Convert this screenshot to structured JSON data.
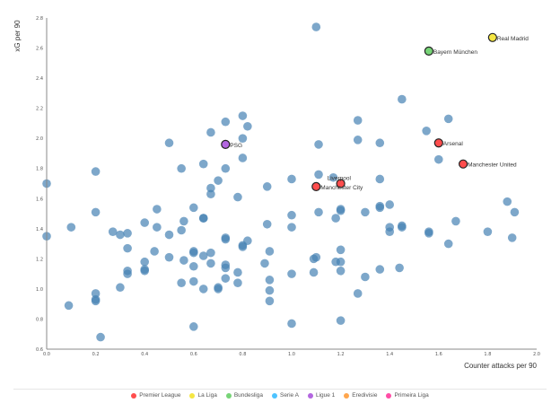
{
  "chart_data": {
    "type": "scatter",
    "xlabel": "Counter attacks per 90",
    "ylabel": "xG per 90",
    "xlim": [
      0,
      2.0
    ],
    "ylim": [
      0.6,
      2.8
    ],
    "xticks": [
      "0.0",
      "0.2",
      "0.4",
      "0.6",
      "0.8",
      "1.0",
      "1.2",
      "1.4",
      "1.6",
      "1.8",
      "2.0"
    ],
    "yticks": [
      "0.6",
      "0.8",
      "1.0",
      "1.2",
      "1.4",
      "1.6",
      "1.8",
      "2.0",
      "2.2",
      "2.4",
      "2.6",
      "2.8"
    ],
    "grid": false,
    "legend_position": "bottom",
    "legend": [
      {
        "label": "Premier League",
        "color": "#ff4d4d"
      },
      {
        "label": "La Liga",
        "color": "#f5e642"
      },
      {
        "label": "Bundesliga",
        "color": "#77d477"
      },
      {
        "label": "Serie A",
        "color": "#4dc3ff"
      },
      {
        "label": "Ligue 1",
        "color": "#b366e0"
      },
      {
        "label": "Eredivisie",
        "color": "#ffa64d"
      },
      {
        "label": "Primeira Liga",
        "color": "#ff4da6"
      }
    ],
    "other_color": "#4682b4",
    "highlighted": [
      {
        "label": "Real Madrid",
        "x": 1.82,
        "y": 2.67,
        "color": "#f5e642"
      },
      {
        "label": "Bayern München",
        "x": 1.56,
        "y": 2.58,
        "color": "#77d477"
      },
      {
        "label": "Arsenal",
        "x": 1.6,
        "y": 1.97,
        "color": "#ff4d4d"
      },
      {
        "label": "Manchester United",
        "x": 1.7,
        "y": 1.83,
        "color": "#ff4d4d"
      },
      {
        "label": "Liverpool",
        "x": 1.2,
        "y": 1.7,
        "color": "#ff4d4d"
      },
      {
        "label": "Manchester City",
        "x": 1.1,
        "y": 1.68,
        "color": "#ff4d4d"
      },
      {
        "label": "PSG",
        "x": 0.73,
        "y": 1.96,
        "color": "#b366e0"
      }
    ],
    "others": [
      [
        0.0,
        1.7
      ],
      [
        0.2,
        1.78
      ],
      [
        0.5,
        1.97
      ],
      [
        0.55,
        1.8
      ],
      [
        0.64,
        1.83
      ],
      [
        0.67,
        2.04
      ],
      [
        0.73,
        2.11
      ],
      [
        0.8,
        2.15
      ],
      [
        0.82,
        2.08
      ],
      [
        0.8,
        2.0
      ],
      [
        0.8,
        1.87
      ],
      [
        0.73,
        1.8
      ],
      [
        0.7,
        1.72
      ],
      [
        0.67,
        1.67
      ],
      [
        0.67,
        1.63
      ],
      [
        0.78,
        1.61
      ],
      [
        0.9,
        1.68
      ],
      [
        1.1,
        2.74
      ],
      [
        1.45,
        2.26
      ],
      [
        1.27,
        2.12
      ],
      [
        1.64,
        2.13
      ],
      [
        1.27,
        1.99
      ],
      [
        1.55,
        2.05
      ],
      [
        1.11,
        1.96
      ],
      [
        1.36,
        1.97
      ],
      [
        1.6,
        1.86
      ],
      [
        1.11,
        1.76
      ],
      [
        1.0,
        1.73
      ],
      [
        1.36,
        1.73
      ],
      [
        1.17,
        1.74
      ],
      [
        0.0,
        1.35
      ],
      [
        0.1,
        1.41
      ],
      [
        0.2,
        1.51
      ],
      [
        0.27,
        1.38
      ],
      [
        0.3,
        1.36
      ],
      [
        0.33,
        1.37
      ],
      [
        0.33,
        1.27
      ],
      [
        0.4,
        1.44
      ],
      [
        0.45,
        1.53
      ],
      [
        0.45,
        1.41
      ],
      [
        0.5,
        1.36
      ],
      [
        0.55,
        1.39
      ],
      [
        0.56,
        1.45
      ],
      [
        0.6,
        1.54
      ],
      [
        0.64,
        1.47
      ],
      [
        0.64,
        1.47
      ],
      [
        0.44,
        1.25
      ],
      [
        0.5,
        1.21
      ],
      [
        0.4,
        1.18
      ],
      [
        0.4,
        1.12
      ],
      [
        0.4,
        1.13
      ],
      [
        0.33,
        1.12
      ],
      [
        0.33,
        1.1
      ],
      [
        0.3,
        1.01
      ],
      [
        0.2,
        0.97
      ],
      [
        0.2,
        0.92
      ],
      [
        0.2,
        0.93
      ],
      [
        0.09,
        0.89
      ],
      [
        0.22,
        0.68
      ],
      [
        0.56,
        1.19
      ],
      [
        0.6,
        1.24
      ],
      [
        0.6,
        1.25
      ],
      [
        0.6,
        1.15
      ],
      [
        0.55,
        1.04
      ],
      [
        0.6,
        1.05
      ],
      [
        0.64,
        1.0
      ],
      [
        0.64,
        1.22
      ],
      [
        0.67,
        1.24
      ],
      [
        0.67,
        1.17
      ],
      [
        0.7,
        1.0
      ],
      [
        0.7,
        1.01
      ],
      [
        0.73,
        1.16
      ],
      [
        0.73,
        1.14
      ],
      [
        0.73,
        1.07
      ],
      [
        0.73,
        1.34
      ],
      [
        0.73,
        1.33
      ],
      [
        0.78,
        1.11
      ],
      [
        0.78,
        1.04
      ],
      [
        0.8,
        1.29
      ],
      [
        0.8,
        1.28
      ],
      [
        0.82,
        1.32
      ],
      [
        0.9,
        1.43
      ],
      [
        0.89,
        1.17
      ],
      [
        0.91,
        1.25
      ],
      [
        0.91,
        1.06
      ],
      [
        0.91,
        0.99
      ],
      [
        0.91,
        0.92
      ],
      [
        0.6,
        0.75
      ],
      [
        1.0,
        1.49
      ],
      [
        1.0,
        1.41
      ],
      [
        1.11,
        1.51
      ],
      [
        1.2,
        1.53
      ],
      [
        1.2,
        1.52
      ],
      [
        1.18,
        1.47
      ],
      [
        1.3,
        1.51
      ],
      [
        1.36,
        1.54
      ],
      [
        1.36,
        1.55
      ],
      [
        1.4,
        1.56
      ],
      [
        1.4,
        1.41
      ],
      [
        1.4,
        1.38
      ],
      [
        1.45,
        1.42
      ],
      [
        1.45,
        1.41
      ],
      [
        1.56,
        1.38
      ],
      [
        1.56,
        1.37
      ],
      [
        1.64,
        1.3
      ],
      [
        1.67,
        1.45
      ],
      [
        1.8,
        1.38
      ],
      [
        1.88,
        1.58
      ],
      [
        1.91,
        1.51
      ],
      [
        1.9,
        1.34
      ],
      [
        1.2,
        1.26
      ],
      [
        1.09,
        1.2
      ],
      [
        1.1,
        1.21
      ],
      [
        1.18,
        1.18
      ],
      [
        1.2,
        1.18
      ],
      [
        1.2,
        1.12
      ],
      [
        1.0,
        1.1
      ],
      [
        1.09,
        1.11
      ],
      [
        1.3,
        1.08
      ],
      [
        1.36,
        1.13
      ],
      [
        1.44,
        1.14
      ],
      [
        1.27,
        0.97
      ],
      [
        1.0,
        0.77
      ],
      [
        1.2,
        0.79
      ]
    ]
  }
}
